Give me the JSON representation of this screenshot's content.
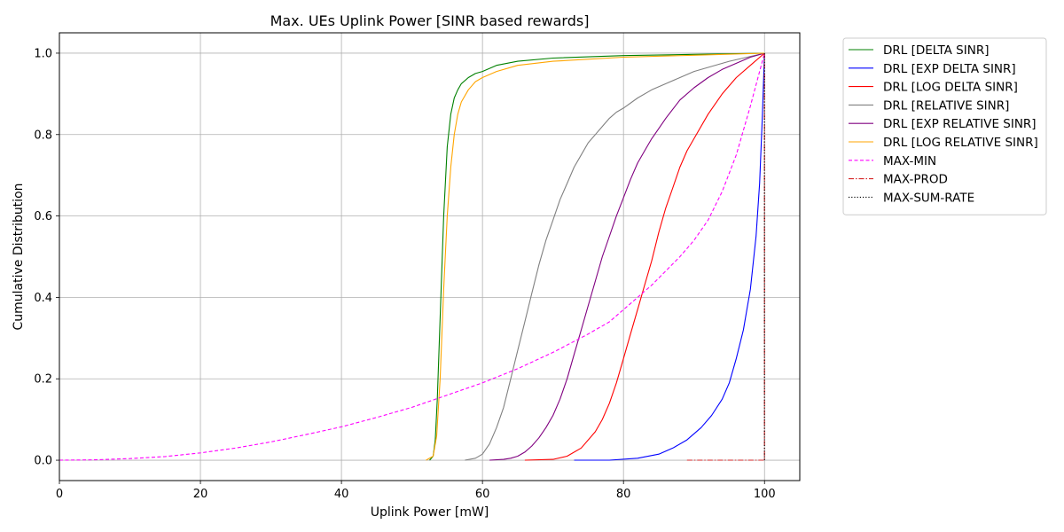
{
  "chart_data": {
    "type": "line",
    "title": "Max. UEs Uplink Power [SINR based rewards]",
    "xlabel": "Uplink Power [mW]",
    "ylabel": "Cumulative Distribution",
    "xlim": [
      0,
      105
    ],
    "ylim": [
      -0.05,
      1.05
    ],
    "xticks": [
      0,
      20,
      40,
      60,
      80,
      100
    ],
    "xtick_labels": [
      "0",
      "20",
      "40",
      "60",
      "80",
      "100"
    ],
    "yticks": [
      0.0,
      0.2,
      0.4,
      0.6,
      0.8,
      1.0
    ],
    "ytick_labels": [
      "0.0",
      "0.2",
      "0.4",
      "0.6",
      "0.8",
      "1.0"
    ],
    "grid": true,
    "legend_position": "outside-top-right",
    "series": [
      {
        "name": "DRL [DELTA SINR]",
        "color": "#008000",
        "dash": "solid",
        "x": [
          52.5,
          53.0,
          53.3,
          53.6,
          54.0,
          54.5,
          55.0,
          55.5,
          56.0,
          56.5,
          57.0,
          58.0,
          59.0,
          60.0,
          62.0,
          65.0,
          70.0,
          80.0,
          90.0,
          100.0
        ],
        "y": [
          0.0,
          0.01,
          0.05,
          0.15,
          0.35,
          0.6,
          0.77,
          0.85,
          0.89,
          0.91,
          0.925,
          0.94,
          0.95,
          0.955,
          0.97,
          0.98,
          0.988,
          0.994,
          0.997,
          1.0
        ]
      },
      {
        "name": "DRL [EXP DELTA SINR]",
        "color": "#0000ff",
        "dash": "solid",
        "x": [
          73.0,
          78.0,
          82.0,
          85.0,
          87.0,
          89.0,
          91.0,
          92.5,
          94.0,
          95.0,
          96.0,
          97.0,
          98.0,
          98.8,
          99.3,
          99.7,
          100.0
        ],
        "y": [
          0.0,
          0.0,
          0.005,
          0.015,
          0.03,
          0.05,
          0.08,
          0.11,
          0.15,
          0.19,
          0.25,
          0.32,
          0.42,
          0.55,
          0.68,
          0.85,
          1.0
        ]
      },
      {
        "name": "DRL [LOG DELTA SINR]",
        "color": "#ff0000",
        "dash": "solid",
        "x": [
          66.0,
          70.0,
          72.0,
          74.0,
          76.0,
          77.0,
          78.0,
          79.0,
          80.0,
          81.0,
          82.0,
          83.0,
          84.0,
          85.0,
          86.0,
          87.0,
          88.0,
          89.0,
          90.0,
          92.0,
          94.0,
          96.0,
          98.0,
          100.0
        ],
        "y": [
          0.0,
          0.002,
          0.01,
          0.03,
          0.07,
          0.1,
          0.14,
          0.19,
          0.25,
          0.31,
          0.37,
          0.43,
          0.49,
          0.56,
          0.62,
          0.67,
          0.72,
          0.76,
          0.79,
          0.85,
          0.9,
          0.94,
          0.97,
          1.0
        ]
      },
      {
        "name": "DRL [RELATIVE SINR]",
        "color": "#808080",
        "dash": "solid",
        "x": [
          57.5,
          59.0,
          60.0,
          61.0,
          62.0,
          63.0,
          64.0,
          65.0,
          66.0,
          67.0,
          68.0,
          69.0,
          70.0,
          71.0,
          72.0,
          73.0,
          74.0,
          75.0,
          76.0,
          77.0,
          78.0,
          79.0,
          80.0,
          82.0,
          84.0,
          86.0,
          88.0,
          90.0,
          92.0,
          95.0,
          100.0
        ],
        "y": [
          0.0,
          0.005,
          0.015,
          0.04,
          0.08,
          0.13,
          0.2,
          0.27,
          0.34,
          0.41,
          0.48,
          0.54,
          0.59,
          0.64,
          0.68,
          0.72,
          0.75,
          0.78,
          0.8,
          0.82,
          0.84,
          0.855,
          0.865,
          0.89,
          0.91,
          0.925,
          0.94,
          0.955,
          0.965,
          0.98,
          1.0
        ]
      },
      {
        "name": "DRL [EXP RELATIVE SINR]",
        "color": "#800080",
        "dash": "solid",
        "x": [
          61.0,
          63.0,
          64.0,
          65.0,
          66.0,
          67.0,
          68.0,
          69.0,
          70.0,
          71.0,
          72.0,
          73.0,
          74.0,
          75.0,
          76.0,
          77.0,
          78.0,
          79.0,
          80.0,
          81.0,
          82.0,
          83.0,
          84.0,
          85.0,
          86.0,
          88.0,
          90.0,
          92.0,
          94.0,
          96.0,
          98.0,
          100.0
        ],
        "y": [
          0.0,
          0.002,
          0.005,
          0.01,
          0.02,
          0.035,
          0.055,
          0.08,
          0.11,
          0.15,
          0.2,
          0.26,
          0.32,
          0.38,
          0.44,
          0.5,
          0.55,
          0.6,
          0.645,
          0.69,
          0.73,
          0.76,
          0.79,
          0.815,
          0.84,
          0.885,
          0.915,
          0.94,
          0.96,
          0.975,
          0.99,
          1.0
        ]
      },
      {
        "name": "DRL [LOG RELATIVE SINR]",
        "color": "#ffa500",
        "dash": "solid",
        "x": [
          52.0,
          53.0,
          53.5,
          54.0,
          54.5,
          55.0,
          55.5,
          56.0,
          56.5,
          57.0,
          58.0,
          59.0,
          60.0,
          62.0,
          65.0,
          70.0,
          80.0,
          90.0,
          100.0
        ],
        "y": [
          0.0,
          0.01,
          0.06,
          0.2,
          0.42,
          0.6,
          0.72,
          0.8,
          0.85,
          0.88,
          0.91,
          0.93,
          0.94,
          0.955,
          0.97,
          0.98,
          0.99,
          0.995,
          1.0
        ]
      },
      {
        "name": "MAX-MIN",
        "color": "#ff00ff",
        "dash": "dashed",
        "x": [
          0.0,
          5.0,
          10.0,
          15.0,
          20.0,
          25.0,
          30.0,
          35.0,
          40.0,
          45.0,
          50.0,
          55.0,
          60.0,
          65.0,
          70.0,
          75.0,
          78.0,
          80.0,
          82.0,
          84.0,
          86.0,
          88.0,
          90.0,
          92.0,
          94.0,
          96.0,
          98.0,
          100.0
        ],
        "y": [
          0.0,
          0.001,
          0.004,
          0.009,
          0.018,
          0.03,
          0.045,
          0.063,
          0.082,
          0.105,
          0.13,
          0.16,
          0.19,
          0.225,
          0.265,
          0.31,
          0.34,
          0.37,
          0.4,
          0.43,
          0.465,
          0.5,
          0.54,
          0.59,
          0.66,
          0.75,
          0.87,
          1.0
        ]
      },
      {
        "name": "MAX-PROD",
        "color": "#d62728",
        "dash": "dashdot",
        "x": [
          89.0,
          95.0,
          100.0,
          100.0
        ],
        "y": [
          0.0,
          0.0,
          0.0,
          1.0
        ]
      },
      {
        "name": "MAX-SUM-RATE",
        "color": "#000000",
        "dash": "dotted",
        "x": [
          100.0,
          100.0
        ],
        "y": [
          0.0,
          1.0
        ]
      }
    ]
  }
}
